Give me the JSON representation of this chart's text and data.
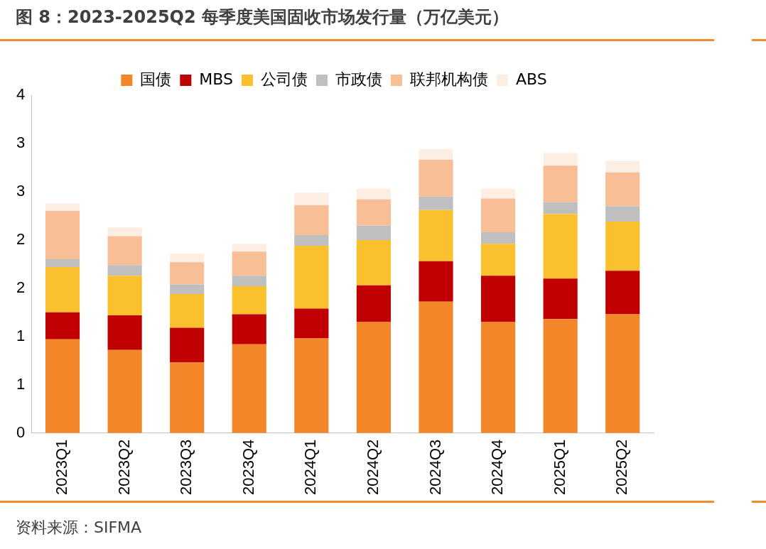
{
  "chart_data": {
    "type": "bar",
    "title": "图 8：2023-2025Q2 每季度美国固收市场发行量（万亿美元）",
    "annotations": [
      "资料来源：SIFMA"
    ],
    "categories": [
      "2023Q1",
      "2023Q2",
      "2023Q3",
      "2023Q4",
      "2024Q1",
      "2024Q2",
      "2024Q3",
      "2024Q4",
      "2025Q1",
      "2025Q2"
    ],
    "stacked": true,
    "grid": false,
    "legend": "top",
    "ylim": [
      0,
      3.5
    ],
    "yticks": [
      0,
      {
        "value": 0.5,
        "label": "1"
      },
      1,
      {
        "value": 1.5,
        "label": "2"
      },
      2,
      {
        "value": 2.5,
        "label": "3"
      },
      3,
      {
        "value": 3.5,
        "label": "4"
      }
    ],
    "series": [
      {
        "name": "国债",
        "color": "#f4862a",
        "values": [
          0.97,
          0.86,
          0.73,
          0.92,
          0.98,
          1.15,
          1.36,
          1.15,
          1.18,
          1.23
        ]
      },
      {
        "name": "MBS",
        "color": "#c00000",
        "values": [
          0.28,
          0.36,
          0.36,
          0.31,
          0.31,
          0.38,
          0.42,
          0.48,
          0.42,
          0.45
        ]
      },
      {
        "name": "公司债",
        "color": "#fbc02d",
        "values": [
          0.47,
          0.41,
          0.35,
          0.29,
          0.65,
          0.47,
          0.53,
          0.33,
          0.67,
          0.51
        ]
      },
      {
        "name": "市政债",
        "color": "#bfbfbf",
        "values": [
          0.08,
          0.11,
          0.1,
          0.11,
          0.11,
          0.15,
          0.14,
          0.12,
          0.12,
          0.16
        ]
      },
      {
        "name": "联邦机构债",
        "color": "#f8be95",
        "values": [
          0.5,
          0.3,
          0.23,
          0.25,
          0.31,
          0.27,
          0.38,
          0.35,
          0.38,
          0.35
        ]
      },
      {
        "name": "ABS",
        "color": "#fdeee4",
        "values": [
          0.08,
          0.09,
          0.09,
          0.08,
          0.13,
          0.11,
          0.11,
          0.1,
          0.13,
          0.12
        ]
      }
    ]
  }
}
